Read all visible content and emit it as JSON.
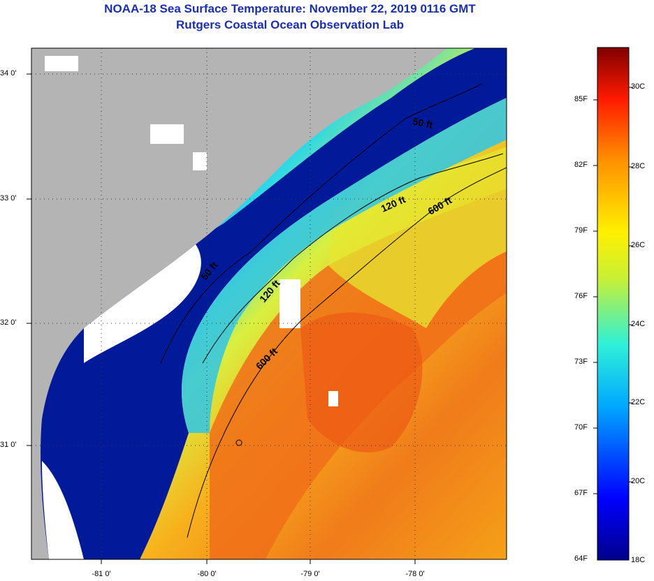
{
  "header": {
    "title": "NOAA-18 Sea Surface Temperature:  November 22, 2019 0116 GMT",
    "subtitle": "Rutgers Coastal Ocean Observation Lab"
  },
  "map": {
    "lat_ticks": [
      "34 0'",
      "33 0'",
      "32 0'",
      "31 0'"
    ],
    "lon_ticks": [
      "-81 0'",
      "-80 0'",
      "-79 0'",
      "-78 0'"
    ],
    "contour_labels": {
      "c50_north": "50 ft",
      "c120_north": "120 ft",
      "c600_north": "600 ft",
      "c50_south": "50 ft",
      "c120_south": "120 ft",
      "c600_south": "600 ft"
    }
  },
  "colorbar": {
    "fahrenheit": [
      "85F",
      "82F",
      "79F",
      "76F",
      "73F",
      "70F",
      "67F",
      "64F"
    ],
    "celsius": [
      "30C",
      "28C",
      "26C",
      "24C",
      "22C",
      "20C",
      "18C"
    ]
  },
  "colors": {
    "land": "#b4b4b4",
    "cloud": "#ffffff",
    "title": "#1a2fb0"
  }
}
